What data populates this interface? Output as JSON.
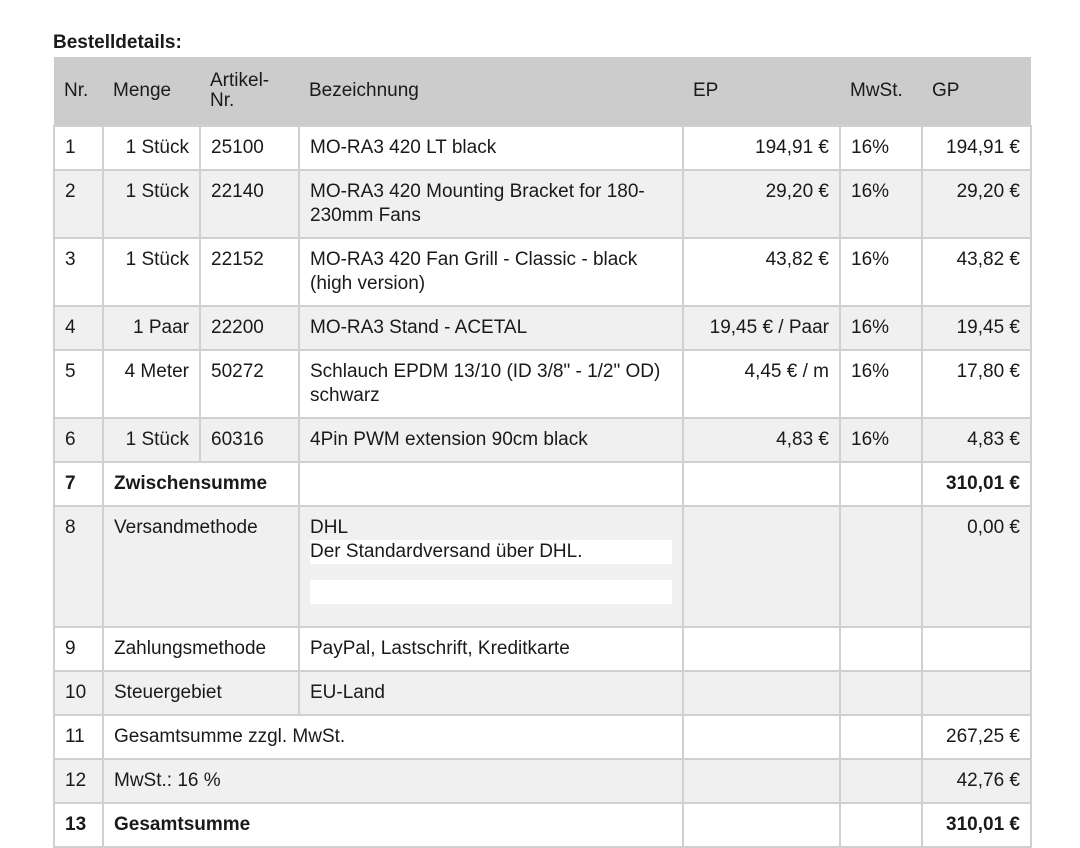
{
  "title": "Bestelldetails:",
  "headers": {
    "nr": "Nr.",
    "menge": "Menge",
    "artikel": "Artikel-Nr.",
    "bezeichnung": "Bezeichnung",
    "ep": "EP",
    "mwst": "MwSt.",
    "gp": "GP"
  },
  "items": [
    {
      "nr": "1",
      "menge": "1 Stück",
      "artikel": "25100",
      "bezeichnung": "MO-RA3 420 LT black",
      "ep": "194,91 €",
      "mwst": "16%",
      "gp": "194,91 €"
    },
    {
      "nr": "2",
      "menge": "1 Stück",
      "artikel": "22140",
      "bezeichnung": "MO-RA3 420 Mounting Bracket for 180-230mm Fans",
      "ep": "29,20 €",
      "mwst": "16%",
      "gp": "29,20 €"
    },
    {
      "nr": "3",
      "menge": "1 Stück",
      "artikel": "22152",
      "bezeichnung": "MO-RA3 420 Fan Grill - Classic - black (high version)",
      "ep": "43,82 €",
      "mwst": "16%",
      "gp": "43,82 €"
    },
    {
      "nr": "4",
      "menge": "1 Paar",
      "artikel": "22200",
      "bezeichnung": "MO-RA3 Stand - ACETAL",
      "ep": "19,45 € / Paar",
      "mwst": "16%",
      "gp": "19,45 €"
    },
    {
      "nr": "5",
      "menge": "4 Meter",
      "artikel": "50272",
      "bezeichnung": "Schlauch EPDM 13/10 (ID 3/8\" - 1/2\" OD) schwarz",
      "ep": "4,45 € / m",
      "mwst": "16%",
      "gp": "17,80 €"
    },
    {
      "nr": "6",
      "menge": "1 Stück",
      "artikel": "60316",
      "bezeichnung": "4Pin PWM extension 90cm black",
      "ep": "4,83 €",
      "mwst": "16%",
      "gp": "4,83 €"
    }
  ],
  "subtotal": {
    "nr": "7",
    "label": "Zwischensumme",
    "gp": "310,01 €"
  },
  "shipping": {
    "nr": "8",
    "label": "Versandmethode",
    "method": "DHL",
    "description": "Der Standardversand über DHL.",
    "gp": "0,00 €"
  },
  "payment": {
    "nr": "9",
    "label": "Zahlungsmethode",
    "value": "PayPal, Lastschrift, Kreditkarte"
  },
  "tax_region": {
    "nr": "10",
    "label": "Steuergebiet",
    "value": "EU-Land"
  },
  "net_total": {
    "nr": "11",
    "label": "Gesamtsumme zzgl. MwSt.",
    "gp": "267,25 €"
  },
  "vat": {
    "nr": "12",
    "label": "MwSt.: 16 %",
    "gp": "42,76 €"
  },
  "grand_total": {
    "nr": "13",
    "label": "Gesamtsumme",
    "gp": "310,01 €"
  }
}
